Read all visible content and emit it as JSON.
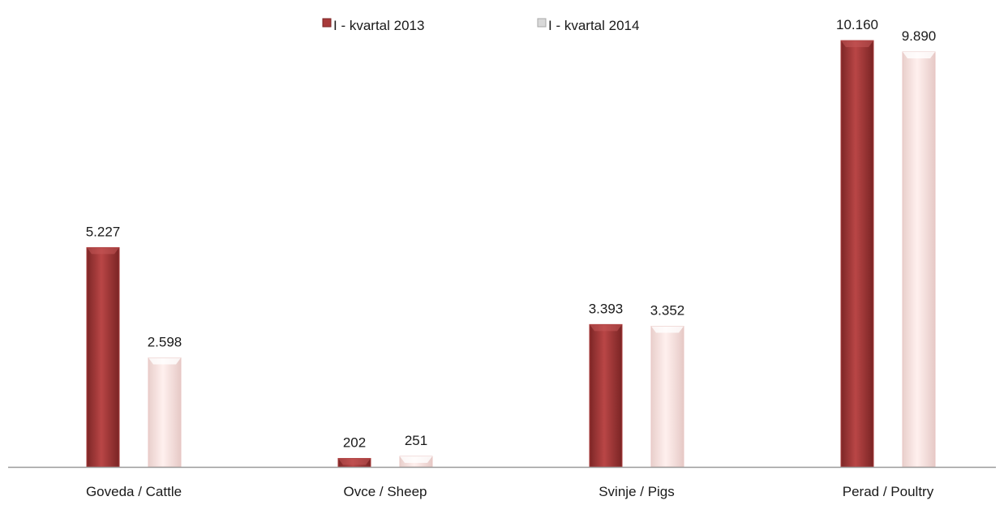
{
  "chart_data": {
    "type": "bar",
    "categories": [
      "Goveda / Cattle",
      "Ovce / Sheep",
      "Svinje / Pigs",
      "Perad / Poultry"
    ],
    "series": [
      {
        "name": "I - kvartal 2013",
        "values": [
          5227,
          202,
          3393,
          10160
        ],
        "labels": [
          "5.227",
          "202",
          "3.393",
          "10.160"
        ]
      },
      {
        "name": "I - kvartal 2014",
        "values": [
          2598,
          251,
          3352,
          9890
        ],
        "labels": [
          "2.598",
          "251",
          "3.352",
          "9.890"
        ]
      }
    ],
    "title": "",
    "xlabel": "",
    "ylabel": "",
    "ylim": [
      0,
      10200
    ],
    "grid": false,
    "legend": "top-center"
  },
  "colors": {
    "series_2013": "#a83a3a",
    "series_2013_light": "#c85b5b",
    "series_2014": "#fbe3e1",
    "series_2014_edge": "#e8c6c3",
    "axis": "#9a9a9a"
  }
}
